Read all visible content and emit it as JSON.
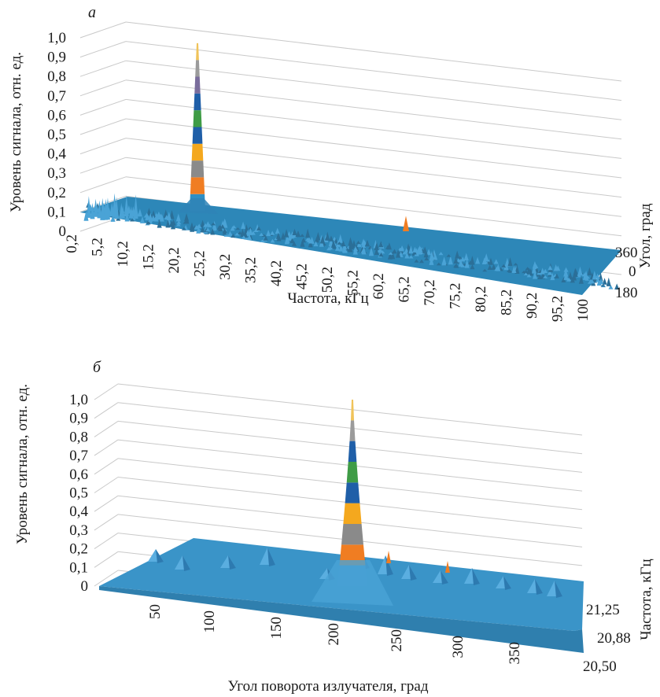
{
  "chart_data": [
    {
      "panel": "а",
      "type": "surface",
      "ylabel": "Уровень сигнала, отн. ед.",
      "xlabel": "Частота, кГц",
      "zlabel": "Угол, град",
      "y_ticks": [
        "0",
        "0,1",
        "0,2",
        "0,3",
        "0,4",
        "0,5",
        "0,6",
        "0,7",
        "0,8",
        "0,9",
        "1,0"
      ],
      "x_ticks": [
        "0,2",
        "5,2",
        "10,2",
        "15,2",
        "20,2",
        "25,2",
        "30,2",
        "35,2",
        "40,2",
        "45,2",
        "50,2",
        "55,2",
        "60,2",
        "65,2",
        "70,2",
        "75,2",
        "80,2",
        "85,2",
        "90,2",
        "95,2",
        "100"
      ],
      "z_ticks": [
        "360",
        "0",
        "180"
      ],
      "ylim": [
        0,
        1.0
      ],
      "xlim": [
        0.2,
        100
      ],
      "colors": {
        "surface": "#2e8fc4",
        "noise": "#2b6f98",
        "peak": [
          "#2e8fc4",
          "#f07d22",
          "#8a8a8a",
          "#f4a81e",
          "#1f5fa8",
          "#3f9c46",
          "#1f5fa8",
          "#7a6d9c",
          "#9b9b9b",
          "#f0c35a"
        ]
      },
      "peaks": [
        {
          "frequency_khz": 21.0,
          "level": 0.98
        },
        {
          "frequency_khz": 67.5,
          "level": 0.08
        }
      ]
    },
    {
      "panel": "б",
      "type": "surface",
      "ylabel": "Уровень сигнала, отн. ед.",
      "xlabel": "Угол поворота излучателя, град",
      "zlabel": "Частота, кГц",
      "y_ticks": [
        "0",
        "0,1",
        "0,2",
        "0,3",
        "0,4",
        "0,5",
        "0,6",
        "0,7",
        "0,8",
        "0,9",
        "1,0"
      ],
      "x_ticks": [
        "50",
        "100",
        "150",
        "200",
        "250",
        "300",
        "350"
      ],
      "z_ticks": [
        "21,25",
        "20,88",
        "20,50"
      ],
      "ylim": [
        0,
        1.0
      ],
      "xlim": [
        0,
        360
      ],
      "colors": {
        "surface": "#3d97cc",
        "peak": [
          "#3d97cc",
          "#f07d22",
          "#8a8a8a",
          "#f4a81e",
          "#1f5fa8",
          "#3f9c46",
          "#1f5fa8",
          "#9b9b9b",
          "#f0c35a"
        ]
      },
      "peaks": [
        {
          "angle_deg": 195,
          "level": 1.0
        },
        {
          "angle_deg": 225,
          "level": 0.06
        },
        {
          "angle_deg": 275,
          "level": 0.06
        },
        {
          "angle_deg": 35,
          "level": 0.04
        },
        {
          "angle_deg": 130,
          "level": 0.05
        }
      ]
    }
  ]
}
